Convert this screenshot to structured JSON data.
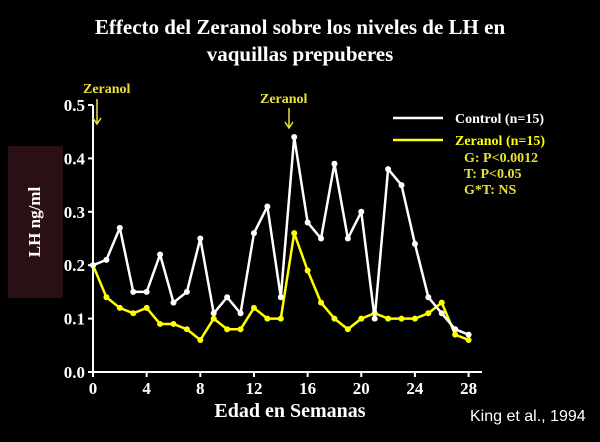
{
  "title_line1": "Effecto del Zeranol sobre los niveles de LH en",
  "title_line2": "vaquillas prepuberes",
  "citation": "King et al., 1994",
  "stats": [
    "G: P<0.0012",
    "T: P<0.05",
    "G*T:  NS"
  ],
  "annotations": [
    {
      "text": "Zeranol",
      "x": 0.5
    },
    {
      "text": "Zeranol",
      "x": 15
    }
  ],
  "colors": {
    "background": "#000000",
    "control": "#ffffff",
    "zeranol": "#ffff00",
    "annotation": "#e8e03a",
    "axis": "#ffffff"
  },
  "chart_data": {
    "type": "line",
    "title": "Effecto del Zeranol sobre los niveles de LH en vaquillas prepuberes",
    "xlabel": "Edad en Semanas",
    "ylabel": "LH ng/ml",
    "xlim": [
      0,
      29
    ],
    "ylim": [
      0.0,
      0.5
    ],
    "xticks": [
      0,
      4,
      8,
      12,
      16,
      20,
      24,
      28
    ],
    "yticks": [
      0.0,
      0.1,
      0.2,
      0.3,
      0.4,
      0.5
    ],
    "ytick_labels": [
      "0.0",
      "0.1",
      "0.2",
      "0.3",
      "0.4",
      "0.5"
    ],
    "legend_position": "top-right",
    "series": [
      {
        "name": "Control (n=15)",
        "color": "#ffffff",
        "x": [
          0,
          1,
          2,
          3,
          4,
          5,
          6,
          7,
          8,
          9,
          10,
          11,
          12,
          13,
          14,
          15,
          16,
          17,
          18,
          19,
          20,
          21,
          22,
          23,
          24,
          25,
          26,
          27,
          28
        ],
        "y": [
          0.2,
          0.21,
          0.27,
          0.15,
          0.15,
          0.22,
          0.13,
          0.15,
          0.25,
          0.11,
          0.14,
          0.11,
          0.26,
          0.31,
          0.14,
          0.44,
          0.28,
          0.25,
          0.39,
          0.25,
          0.3,
          0.1,
          0.38,
          0.35,
          0.24,
          0.14,
          0.11,
          0.08,
          0.07
        ]
      },
      {
        "name": "Zeranol (n=15)",
        "color": "#ffff00",
        "x": [
          0,
          1,
          2,
          3,
          4,
          5,
          6,
          7,
          8,
          9,
          10,
          11,
          12,
          13,
          14,
          15,
          16,
          17,
          18,
          19,
          20,
          21,
          22,
          23,
          24,
          25,
          26,
          27,
          28
        ],
        "y": [
          0.2,
          0.14,
          0.12,
          0.11,
          0.12,
          0.09,
          0.09,
          0.08,
          0.06,
          0.1,
          0.08,
          0.08,
          0.12,
          0.1,
          0.1,
          0.26,
          0.19,
          0.13,
          0.1,
          0.08,
          0.1,
          0.11,
          0.1,
          0.1,
          0.1,
          0.11,
          0.13,
          0.07,
          0.06
        ]
      }
    ]
  }
}
